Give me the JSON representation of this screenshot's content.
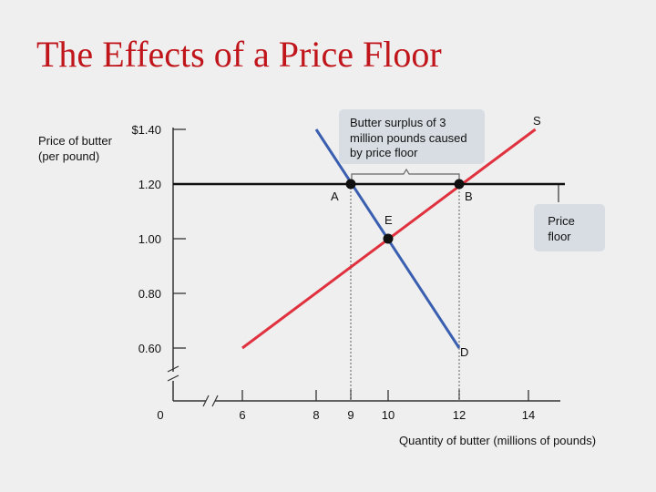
{
  "title": "The Effects of a Price Floor",
  "colors": {
    "title": "#c0151b",
    "supply": "#e0323e",
    "demand": "#3a5fb0",
    "axis": "#333333",
    "box": "#d7dde3"
  },
  "chart_data": {
    "type": "line",
    "title": "The Effects of a Price Floor",
    "xlabel": "Quantity of butter (millions of pounds)",
    "ylabel": "Price of butter (per pound)",
    "x_ticks": [
      "0",
      "6",
      "8",
      "9",
      "10",
      "12",
      "14"
    ],
    "y_ticks": [
      "0.60",
      "0.80",
      "1.00",
      "1.20",
      "$1.40"
    ],
    "series": [
      {
        "name": "S",
        "points": [
          [
            6.0,
            0.6
          ],
          [
            14.2,
            1.4
          ]
        ]
      },
      {
        "name": "D",
        "points": [
          [
            8.0,
            1.4
          ],
          [
            12.0,
            0.6
          ]
        ]
      }
    ],
    "price_floor": {
      "label": "Price floor",
      "value": 1.2
    },
    "points": [
      {
        "label": "A",
        "x": 9,
        "y": 1.2
      },
      {
        "label": "B",
        "x": 12,
        "y": 1.2
      },
      {
        "label": "E",
        "x": 10,
        "y": 1.0
      }
    ],
    "annotations": {
      "surplus": "Butter surplus of 3 million pounds caused by price floor"
    }
  }
}
